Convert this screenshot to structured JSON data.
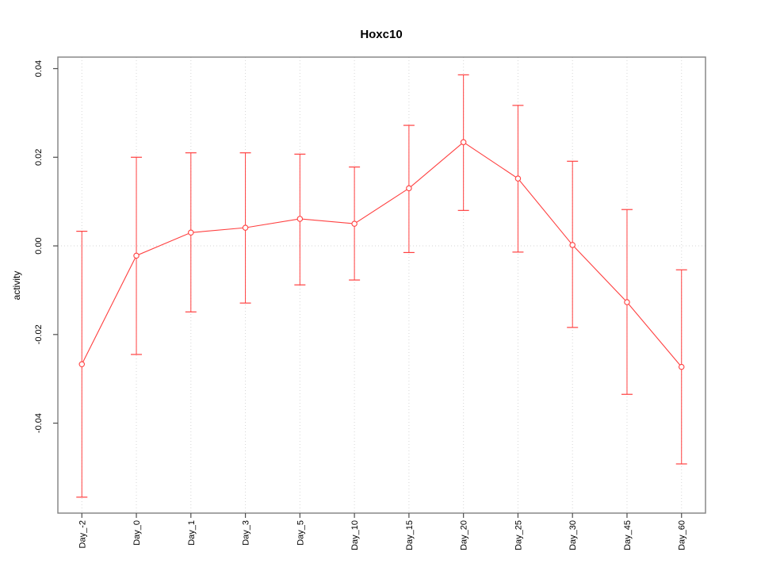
{
  "chart_data": {
    "type": "line",
    "title": "Hoxc10",
    "xlabel": "",
    "ylabel": "activity",
    "legend_position": "none",
    "marker": "open-circle",
    "grid": {
      "vertical": "dotted line at every category",
      "horizontal_zero_line": true
    },
    "categories": [
      "Day_-2",
      "Day_0",
      "Day_1",
      "Day_3",
      "Day_5",
      "Day_10",
      "Day_15",
      "Day_20",
      "Day_25",
      "Day_30",
      "Day_45",
      "Day_60"
    ],
    "series": [
      {
        "name": "Hoxc10 activity",
        "values": [
          -0.0267,
          -0.0022,
          0.003,
          0.0041,
          0.0061,
          0.005,
          0.013,
          0.0234,
          0.0152,
          0.0002,
          -0.0127,
          -0.0273
        ],
        "error_upper": [
          0.0033,
          0.02,
          0.021,
          0.021,
          0.0207,
          0.0178,
          0.0272,
          0.0386,
          0.0317,
          0.0191,
          0.0082,
          -0.0054
        ],
        "error_lower": [
          -0.0567,
          -0.0245,
          -0.0149,
          -0.0129,
          -0.0088,
          -0.0077,
          -0.0015,
          0.008,
          -0.0014,
          -0.0184,
          -0.0335,
          -0.0492
        ]
      }
    ],
    "ylim": [
      -0.0603,
      0.0426
    ],
    "yticks": {
      "values": [
        -0.04,
        -0.02,
        0,
        0.02,
        0.04
      ],
      "labels": [
        "-0.04",
        "-0.02",
        "0.00",
        "0.02",
        "0.04"
      ]
    },
    "colors": {
      "series": "#ff4040",
      "grid": "#d6d6d6",
      "axis_box": "#808080",
      "tick": "#4d4d4d",
      "text": "#000000",
      "background": "#ffffff",
      "marker_fill": "#ffffff"
    }
  }
}
